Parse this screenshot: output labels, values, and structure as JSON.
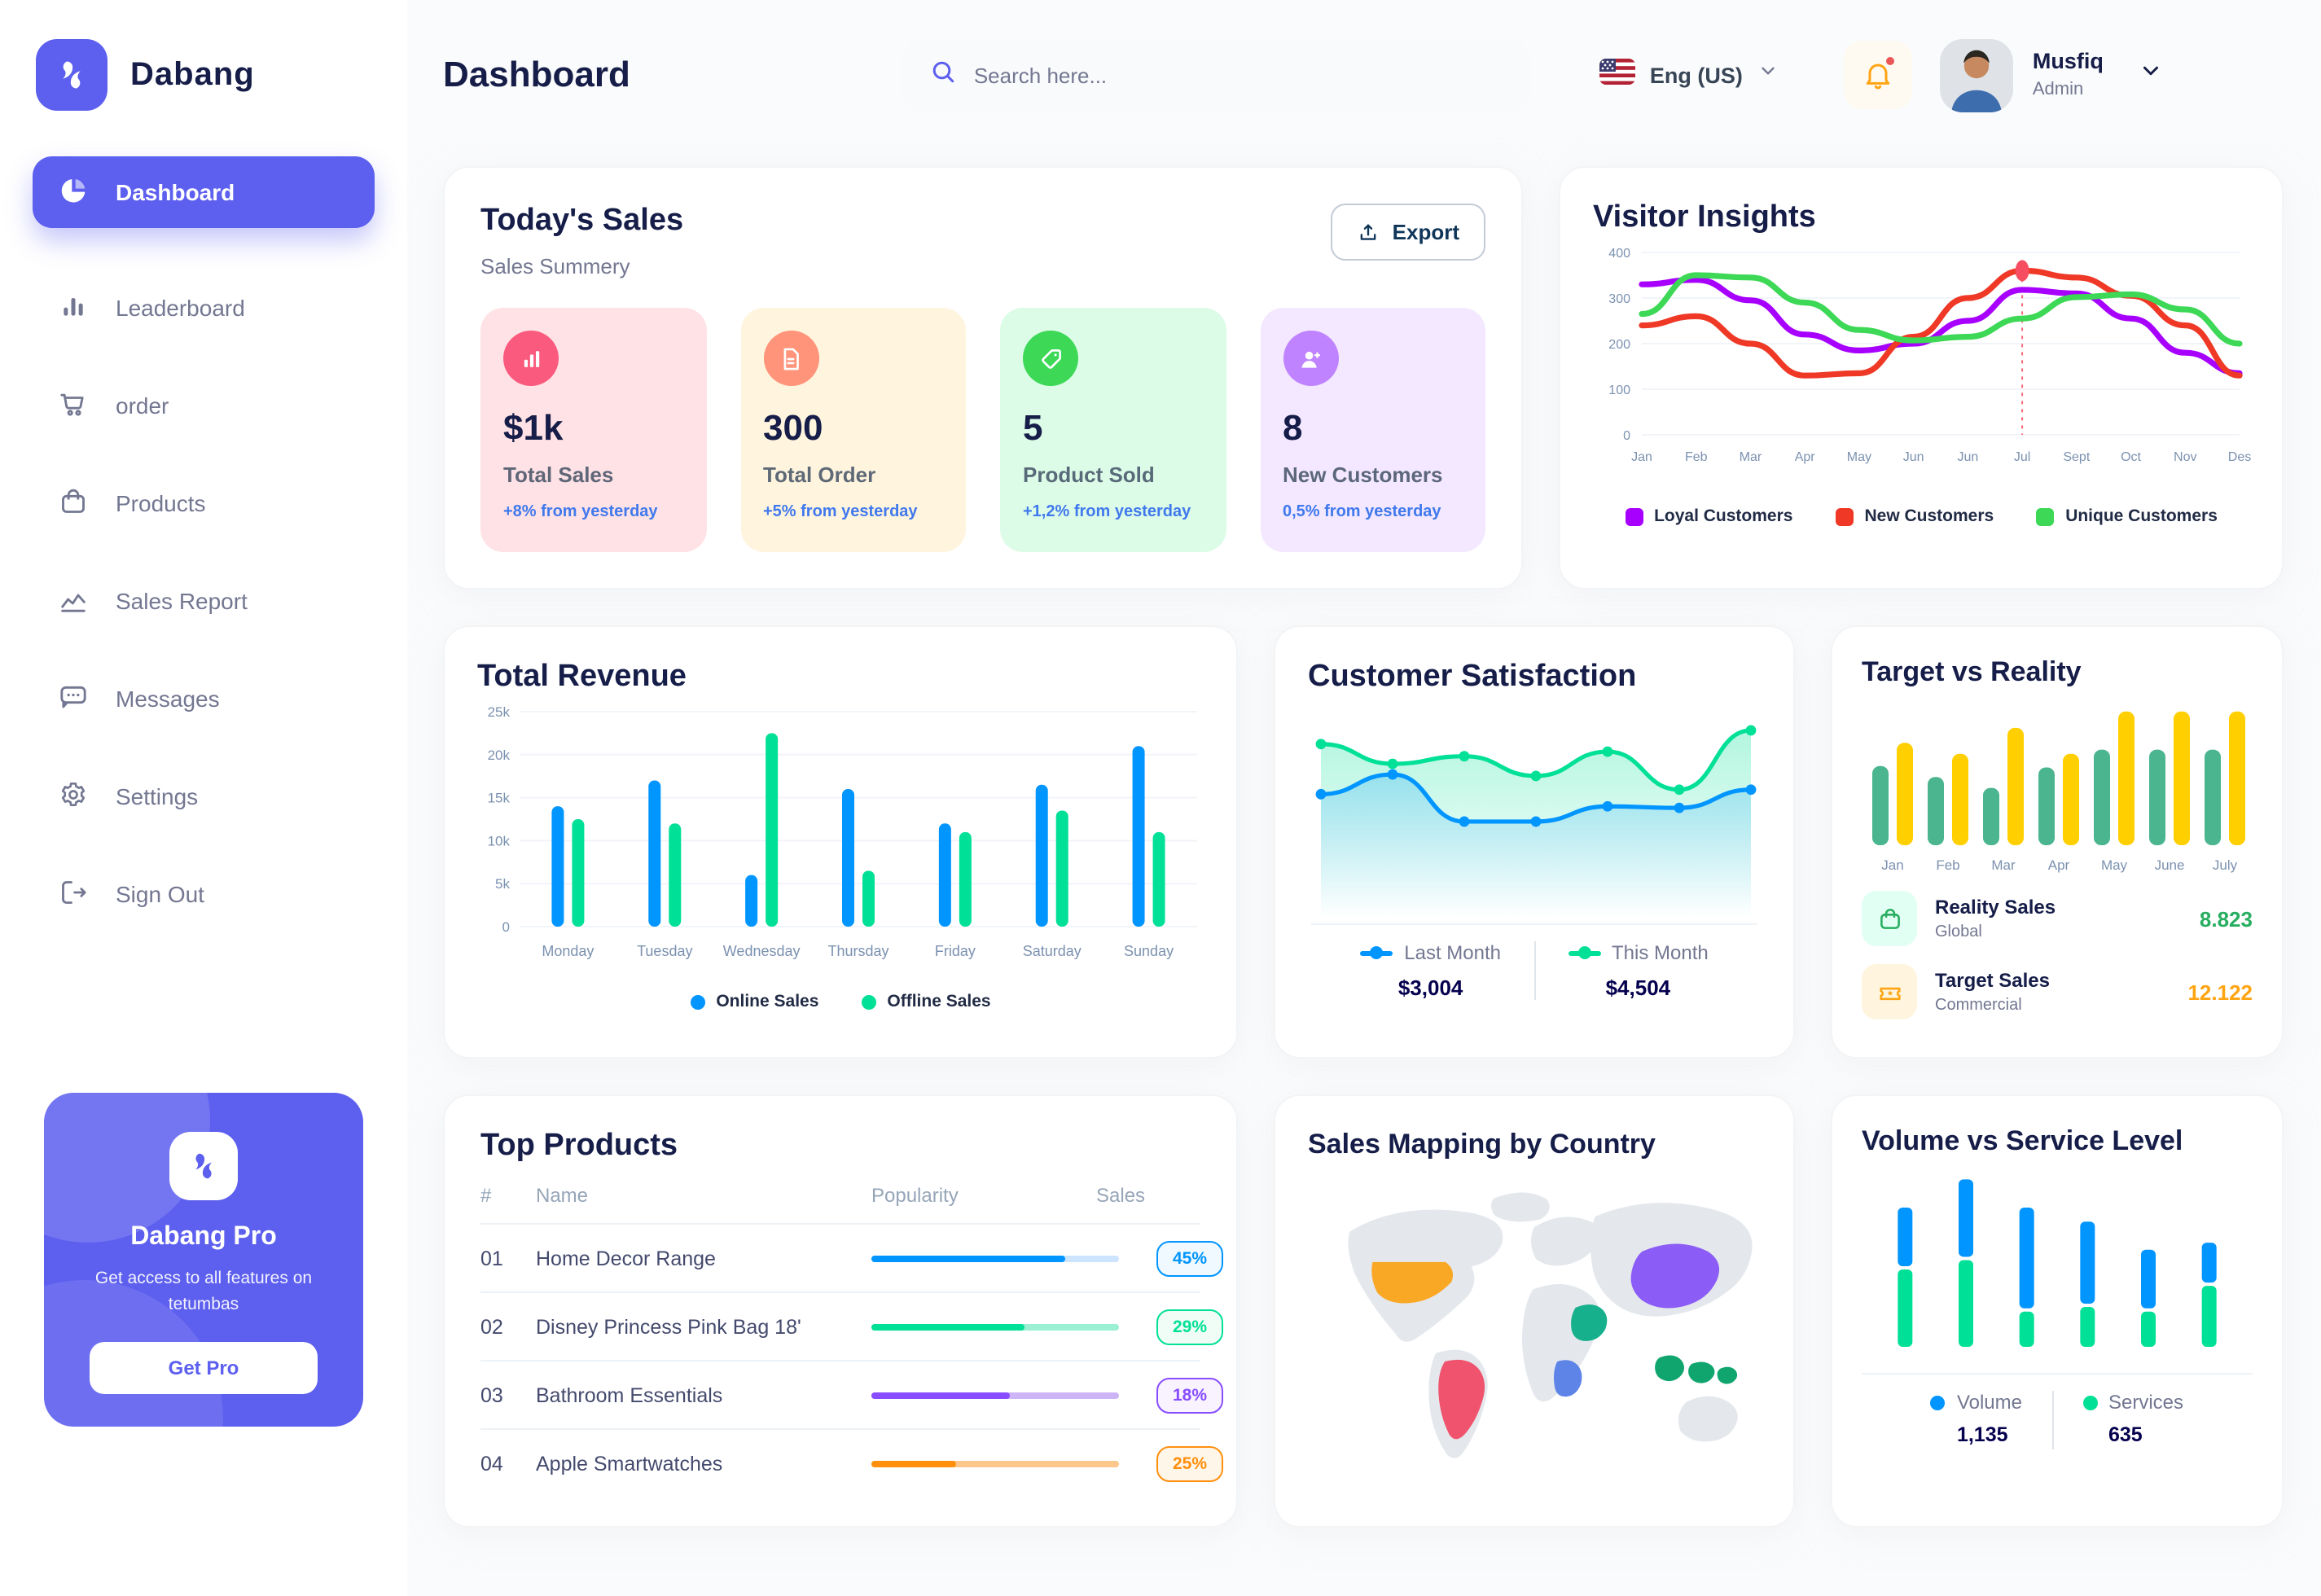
{
  "app": {
    "name": "Dabang"
  },
  "header": {
    "title": "Dashboard",
    "search_placeholder": "Search here...",
    "language_label": "Eng (US)",
    "user_name": "Musfiq",
    "user_role": "Admin"
  },
  "sidebar": {
    "items": [
      {
        "label": "Dashboard",
        "active": true
      },
      {
        "label": "Leaderboard"
      },
      {
        "label": "order"
      },
      {
        "label": "Products"
      },
      {
        "label": "Sales Report"
      },
      {
        "label": "Messages"
      },
      {
        "label": "Settings"
      },
      {
        "label": "Sign Out"
      }
    ],
    "pro": {
      "title": "Dabang Pro",
      "subtitle": "Get access to all features on tetumbas",
      "cta": "Get Pro"
    }
  },
  "today_sales": {
    "title": "Today's Sales",
    "subtitle": "Sales Summery",
    "export_label": "Export",
    "delta_color": "#4079ED",
    "cards": [
      {
        "value": "$1k",
        "label": "Total Sales",
        "delta": "+8% from yesterday",
        "bg": "#FFE2E5",
        "icon_bg": "#FA5A7D"
      },
      {
        "value": "300",
        "label": "Total Order",
        "delta": "+5% from yesterday",
        "bg": "#FFF4DE",
        "icon_bg": "#FF947A"
      },
      {
        "value": "5",
        "label": "Product Sold",
        "delta": "+1,2% from yesterday",
        "bg": "#DCFCE7",
        "icon_bg": "#3CD856"
      },
      {
        "value": "8",
        "label": "New Customers",
        "delta": "0,5% from yesterday",
        "bg": "#F3E8FF",
        "icon_bg": "#BF83FF"
      }
    ]
  },
  "chart_data": [
    {
      "id": "visitor-insights",
      "type": "line",
      "title": "Visitor Insights",
      "x": [
        "Jan",
        "Feb",
        "Mar",
        "Apr",
        "May",
        "Jun",
        "Jun",
        "Jul",
        "Sept",
        "Oct",
        "Nov",
        "Des"
      ],
      "ylim": [
        0,
        400
      ],
      "yticks": [
        0,
        100,
        200,
        300,
        400
      ],
      "grid": true,
      "legend_position": "bottom",
      "annotation": {
        "x_index": 7,
        "series": "New Customers",
        "color": "#F64E60"
      },
      "series": [
        {
          "name": "Loyal Customers",
          "color": "#A700FF",
          "values": [
            330,
            340,
            295,
            220,
            185,
            200,
            250,
            318,
            310,
            255,
            180,
            135
          ]
        },
        {
          "name": "New Customers",
          "color": "#EF3826",
          "values": [
            240,
            260,
            200,
            130,
            135,
            215,
            300,
            360,
            345,
            305,
            240,
            130
          ]
        },
        {
          "name": "Unique Customers",
          "color": "#3CD856",
          "values": [
            265,
            350,
            345,
            290,
            230,
            207,
            215,
            255,
            302,
            308,
            275,
            200
          ]
        }
      ]
    },
    {
      "id": "total-revenue",
      "type": "bar",
      "title": "Total Revenue",
      "categories": [
        "Monday",
        "Tuesday",
        "Wednesday",
        "Thursday",
        "Friday",
        "Saturday",
        "Sunday"
      ],
      "ylim": [
        0,
        25
      ],
      "yticks": [
        0,
        5,
        10,
        15,
        20,
        25
      ],
      "ytick_labels": [
        "0",
        "5k",
        "10k",
        "15k",
        "20k",
        "25k"
      ],
      "grid": true,
      "legend_position": "bottom",
      "series": [
        {
          "name": "Online Sales",
          "color": "#0095FF",
          "values": [
            14,
            17,
            6,
            16,
            12,
            16.5,
            21
          ]
        },
        {
          "name": "Offline Sales",
          "color": "#00E096",
          "values": [
            12.5,
            12,
            22.5,
            6.5,
            11,
            13.5,
            11
          ]
        }
      ]
    },
    {
      "id": "customer-satisfaction",
      "type": "area",
      "title": "Customer Satisfaction",
      "ylim": [
        0,
        105
      ],
      "grid": false,
      "legend_position": "bottom",
      "series": [
        {
          "name": "Last Month",
          "color": "#0095FF",
          "total": "$3,004",
          "values": [
            55,
            68,
            37,
            37,
            47,
            46,
            58
          ]
        },
        {
          "name": "This Month",
          "color": "#00E096",
          "total": "$4,504",
          "values": [
            88,
            75,
            80,
            67,
            83,
            58,
            97
          ]
        }
      ]
    },
    {
      "id": "target-vs-reality",
      "type": "bar",
      "title": "Target vs Reality",
      "categories": [
        "Jan",
        "Feb",
        "Mar",
        "Apr",
        "May",
        "June",
        "July"
      ],
      "ylim": [
        0,
        10.5
      ],
      "grid": false,
      "legend_position": "bottom",
      "series": [
        {
          "name": "Reality Sales",
          "subtitle": "Global",
          "color": "#4AB58E",
          "value_label": "8.823",
          "value_color": "#27AE60",
          "icon_bg": "#E2FFF3",
          "values": [
            5.8,
            5.0,
            4.2,
            5.7,
            7.0,
            7.0,
            7.0
          ]
        },
        {
          "name": "Target Sales",
          "subtitle": "Commercial",
          "color": "#FFCF00",
          "value_label": "12.122",
          "value_color": "#FFA412",
          "icon_bg": "#FFF4DE",
          "values": [
            7.5,
            6.7,
            8.6,
            6.7,
            9.8,
            9.8,
            9.8
          ]
        }
      ]
    },
    {
      "id": "volume-vs-service",
      "type": "stacked-bar",
      "title": "Volume vs Service Level",
      "ylim": [
        0,
        75
      ],
      "grid": false,
      "legend_position": "bottom",
      "series": [
        {
          "name": "Volume",
          "color": "#0095FF",
          "total": "1,135",
          "values": [
            25,
            33,
            43,
            35,
            25,
            17
          ]
        },
        {
          "name": "Services",
          "color": "#00E096",
          "total": "635",
          "values": [
            33,
            37,
            15,
            17,
            15,
            26
          ]
        }
      ]
    }
  ],
  "top_products": {
    "title": "Top Products",
    "columns": {
      "num": "#",
      "name": "Name",
      "popularity": "Popularity",
      "sales": "Sales"
    },
    "rows": [
      {
        "num": "01",
        "name": "Home Decor Range",
        "bar_width": "78%",
        "sales": "45%",
        "color": "#0095FF",
        "track": "#CDE4FE",
        "badge_bg": "#F0F9FF"
      },
      {
        "num": "02",
        "name": "Disney Princess Pink Bag 18'",
        "bar_width": "62%",
        "sales": "29%",
        "color": "#00E096",
        "track": "#9BEFD2",
        "badge_bg": "#F0FDF6"
      },
      {
        "num": "03",
        "name": "Bathroom Essentials",
        "bar_width": "56%",
        "sales": "18%",
        "color": "#884DFF",
        "track": "#CDB4F6",
        "badge_bg": "#F8F3FF"
      },
      {
        "num": "04",
        "name": "Apple Smartwatches",
        "bar_width": "34%",
        "sales": "25%",
        "color": "#FF8F0D",
        "track": "#FDC68B",
        "badge_bg": "#FFF6EA"
      }
    ]
  },
  "sales_map": {
    "title": "Sales Mapping by Country",
    "countries": [
      {
        "name": "United States",
        "color": "#F9A826"
      },
      {
        "name": "Brazil",
        "color": "#F0536D"
      },
      {
        "name": "Saudi Arabia",
        "color": "#16B08D"
      },
      {
        "name": "DR Congo",
        "color": "#5E84E8"
      },
      {
        "name": "China",
        "color": "#8B5CF6"
      },
      {
        "name": "Indonesia",
        "color": "#10A56F"
      }
    ]
  }
}
